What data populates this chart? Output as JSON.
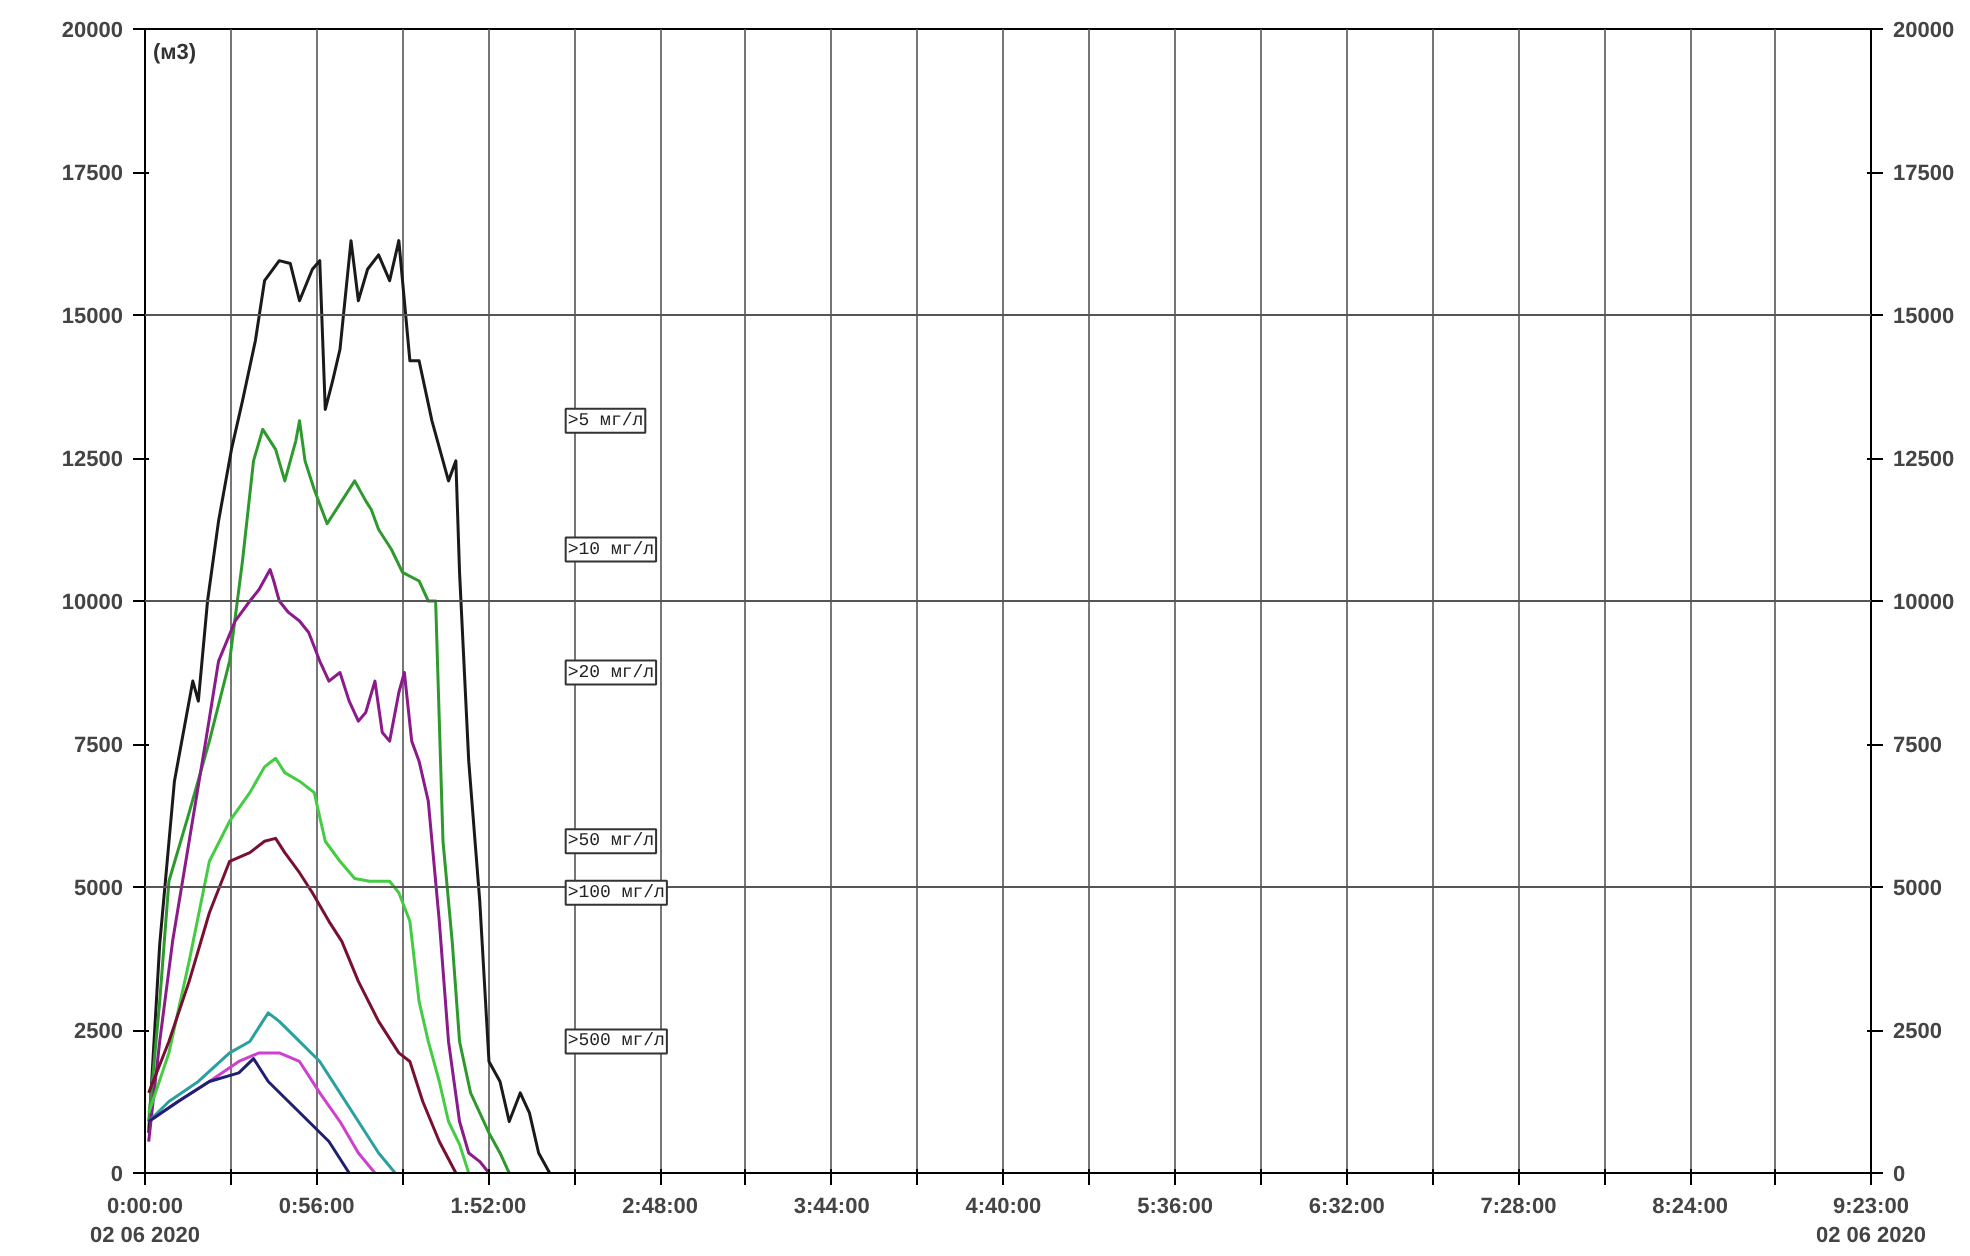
{
  "chart_data": {
    "type": "line",
    "ylabel": "(м3)",
    "xlim": [
      0,
      9.3833
    ],
    "ylim": [
      0,
      20000
    ],
    "y2lim": [
      0,
      20000
    ],
    "xticks": [
      {
        "value": 0,
        "label": "0:00:00\n02 06 2020"
      },
      {
        "value": 0.4667,
        "label": null
      },
      {
        "value": 0.9333,
        "label": "0:56:00"
      },
      {
        "value": 1.4,
        "label": null
      },
      {
        "value": 1.8667,
        "label": "1:52:00"
      },
      {
        "value": 2.3333,
        "label": null
      },
      {
        "value": 2.8,
        "label": "2:48:00"
      },
      {
        "value": 3.2667,
        "label": null
      },
      {
        "value": 3.7333,
        "label": "3:44:00"
      },
      {
        "value": 4.2,
        "label": null
      },
      {
        "value": 4.6667,
        "label": "4:40:00"
      },
      {
        "value": 5.1333,
        "label": null
      },
      {
        "value": 5.6,
        "label": "5:36:00"
      },
      {
        "value": 6.0667,
        "label": null
      },
      {
        "value": 6.5333,
        "label": "6:32:00"
      },
      {
        "value": 7.0,
        "label": null
      },
      {
        "value": 7.4667,
        "label": "7:28:00"
      },
      {
        "value": 7.9333,
        "label": null
      },
      {
        "value": 8.4,
        "label": "8:24:00"
      },
      {
        "value": 8.8667,
        "label": null
      },
      {
        "value": 9.3833,
        "label": "9:23:00\n02 06 2020"
      }
    ],
    "yticks": [
      0,
      2500,
      5000,
      7500,
      10000,
      12500,
      15000,
      17500,
      20000
    ],
    "y2ticks": [
      0,
      2500,
      5000,
      7500,
      10000,
      12500,
      15000,
      17500,
      20000
    ],
    "grid": "x",
    "legend": false,
    "marker": "none",
    "line_style": "solid",
    "ref_lines": [
      {
        "axis": "y",
        "value": 5000
      },
      {
        "axis": "y",
        "value": 10000
      },
      {
        "axis": "y",
        "value": 15000
      }
    ],
    "series": [
      {
        "name": ">5 мг/л",
        "color": "#1a1a1a",
        "x": [
          0.02,
          0.08,
          0.16,
          0.26,
          0.29,
          0.34,
          0.4,
          0.47,
          0.53,
          0.6,
          0.65,
          0.73,
          0.79,
          0.84,
          0.91,
          0.95,
          0.98,
          1.02,
          1.06,
          1.12,
          1.16,
          1.21,
          1.27,
          1.33,
          1.38,
          1.44,
          1.49,
          1.56,
          1.62,
          1.65,
          1.69,
          1.71,
          1.76,
          1.82,
          1.87,
          1.93,
          1.98,
          2.04,
          2.09,
          2.14,
          2.2
        ],
        "values": [
          700,
          4000,
          6850,
          8600,
          8250,
          10000,
          11400,
          12650,
          13500,
          14550,
          15600,
          15950,
          15900,
          15250,
          15800,
          15950,
          13350,
          13850,
          14400,
          16300,
          15250,
          15800,
          16050,
          15600,
          16300,
          14200,
          14200,
          13150,
          12450,
          12100,
          12450,
          10500,
          7200,
          4750,
          1950,
          1600,
          900,
          1400,
          1050,
          350,
          0
        ]
      },
      {
        "name": ">10 мг/л",
        "color": "#2e9a2e",
        "x": [
          0.02,
          0.08,
          0.13,
          0.24,
          0.35,
          0.46,
          0.53,
          0.59,
          0.64,
          0.71,
          0.76,
          0.82,
          0.84,
          0.87,
          0.92,
          0.99,
          1.07,
          1.14,
          1.2,
          1.23,
          1.27,
          1.34,
          1.4,
          1.49,
          1.54,
          1.58,
          1.62,
          1.67,
          1.71,
          1.77,
          1.82,
          1.87,
          1.93,
          1.98
        ],
        "values": [
          900,
          3000,
          5100,
          6300,
          7550,
          8950,
          10700,
          12450,
          13000,
          12650,
          12100,
          12800,
          13150,
          12450,
          11950,
          11350,
          11750,
          12100,
          11750,
          11600,
          11250,
          10900,
          10500,
          10350,
          10000,
          10000,
          5800,
          4050,
          2300,
          1400,
          1050,
          700,
          350,
          0
        ]
      },
      {
        "name": ">20 мг/л",
        "color": "#8b1a8b",
        "x": [
          0.02,
          0.08,
          0.15,
          0.24,
          0.33,
          0.4,
          0.49,
          0.57,
          0.62,
          0.68,
          0.7,
          0.73,
          0.78,
          0.84,
          0.89,
          0.95,
          1.0,
          1.06,
          1.11,
          1.16,
          1.2,
          1.25,
          1.29,
          1.33,
          1.38,
          1.41,
          1.45,
          1.49,
          1.54,
          1.6,
          1.65,
          1.71,
          1.76,
          1.82,
          1.87
        ],
        "values": [
          550,
          2300,
          4050,
          5800,
          7550,
          8950,
          9650,
          10000,
          10200,
          10550,
          10350,
          10000,
          9800,
          9650,
          9450,
          8950,
          8600,
          8750,
          8250,
          7900,
          8050,
          8600,
          7700,
          7550,
          8400,
          8750,
          7550,
          7200,
          6500,
          4400,
          2300,
          900,
          350,
          200,
          0
        ]
      },
      {
        "name": ">50 мг/л",
        "color": "#44cc44",
        "x": [
          0.02,
          0.13,
          0.24,
          0.35,
          0.46,
          0.57,
          0.65,
          0.71,
          0.76,
          0.84,
          0.92,
          0.98,
          1.06,
          1.14,
          1.22,
          1.33,
          1.38,
          1.44,
          1.49,
          1.54,
          1.6,
          1.65,
          1.71,
          1.76
        ],
        "values": [
          1050,
          2100,
          3700,
          5450,
          6150,
          6650,
          7100,
          7250,
          7000,
          6850,
          6650,
          5800,
          5450,
          5150,
          5100,
          5100,
          4900,
          4400,
          3000,
          2300,
          1600,
          900,
          500,
          0
        ]
      },
      {
        "name": ">100 мг/л",
        "color": "#7a1030",
        "x": [
          0.02,
          0.13,
          0.24,
          0.35,
          0.46,
          0.57,
          0.65,
          0.71,
          0.76,
          0.84,
          0.91,
          1.0,
          1.07,
          1.16,
          1.27,
          1.38,
          1.44,
          1.51,
          1.6,
          1.69
        ],
        "values": [
          1400,
          2300,
          3350,
          4550,
          5450,
          5600,
          5800,
          5850,
          5600,
          5250,
          4900,
          4400,
          4050,
          3350,
          2650,
          2100,
          1950,
          1250,
          550,
          0
        ]
      },
      {
        "name": ">500 мг/л",
        "color": "#2aa0a0",
        "x": [
          0.02,
          0.13,
          0.29,
          0.46,
          0.57,
          0.64,
          0.67,
          0.73,
          0.84,
          0.95,
          1.06,
          1.16,
          1.27,
          1.36
        ],
        "values": [
          900,
          1250,
          1600,
          2100,
          2300,
          2650,
          2800,
          2650,
          2300,
          1950,
          1400,
          900,
          350,
          0
        ]
      },
      {
        "color": "#d040d0",
        "x": [
          0.02,
          0.18,
          0.35,
          0.51,
          0.62,
          0.73,
          0.84,
          0.95,
          1.06,
          1.16,
          1.25
        ],
        "values": [
          900,
          1250,
          1600,
          1950,
          2100,
          2100,
          1950,
          1400,
          900,
          350,
          0
        ]
      },
      {
        "color": "#202070",
        "x": [
          0.02,
          0.18,
          0.35,
          0.51,
          0.59,
          0.67,
          0.78,
          0.89,
          1.0,
          1.11
        ],
        "values": [
          900,
          1250,
          1600,
          1750,
          2000,
          1600,
          1250,
          900,
          550,
          0
        ]
      }
    ]
  }
}
